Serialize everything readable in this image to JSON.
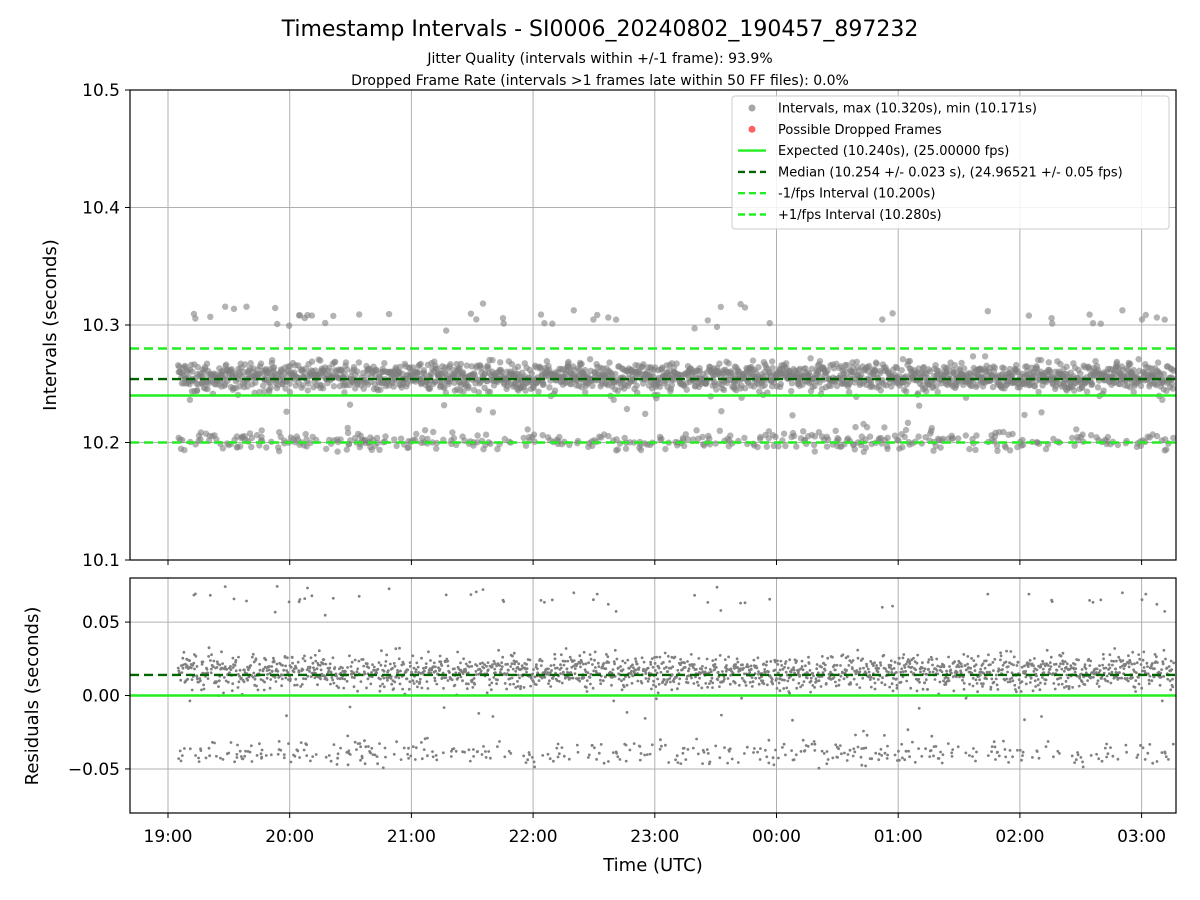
{
  "figure": {
    "title": "Timestamp Intervals - SI0006_20240802_190457_897232",
    "subtitle_jitter": "Jitter Quality (intervals within +/-1 frame): 93.9%",
    "subtitle_dropped": "Dropped Frame Rate (intervals >1 frames late within 50 FF files): 0.0%",
    "xlabel": "Time (UTC)"
  },
  "colors": {
    "points": "#808080",
    "dropped": "#ff6060",
    "expected": "#22ee22",
    "median": "#006400",
    "bounds": "#22ee22",
    "grid": "#b0b0b0"
  },
  "chart_data": [
    {
      "type": "scatter",
      "ylabel": "Intervals (seconds)",
      "ylim": [
        10.1,
        10.5
      ],
      "yticks": [
        "10.1",
        "10.2",
        "10.3",
        "10.4",
        "10.5"
      ],
      "xlim": [
        "18:40",
        "03:16"
      ],
      "xticks": [
        "19:00",
        "20:00",
        "21:00",
        "22:00",
        "23:00",
        "00:00",
        "01:00",
        "02:00",
        "03:00"
      ],
      "grid": true,
      "legend_position": "top-right",
      "legend": [
        {
          "label": "Intervals, max (10.320s), min (10.171s)",
          "style": "dot-gray"
        },
        {
          "label": "Possible Dropped Frames",
          "style": "dot-red"
        },
        {
          "label": "Expected (10.240s), (25.00000 fps)",
          "style": "line-expected"
        },
        {
          "label": "Median (10.254 +/- 0.023 s), (24.96521 +/- 0.05 fps)",
          "style": "dash-median"
        },
        {
          "label": "-1/fps Interval (10.200s)",
          "style": "dash-bound"
        },
        {
          "label": "+1/fps Interval (10.280s)",
          "style": "dash-bound"
        }
      ],
      "reference_lines": {
        "expected": 10.24,
        "median": 10.254,
        "minus_1fps": 10.2,
        "plus_1fps": 10.28
      },
      "series": [
        {
          "name": "Intervals",
          "time_range": [
            "19:05",
            "03:16"
          ],
          "max": 10.32,
          "min": 10.171,
          "bands": [
            {
              "center": 10.256,
              "spread": 0.006
            },
            {
              "center": 10.201,
              "spread": 0.004
            },
            {
              "center": 10.306,
              "spread": 0.005
            }
          ]
        }
      ]
    },
    {
      "type": "scatter",
      "ylabel": "Residuals (seconds)",
      "ylim": [
        -0.08,
        0.08
      ],
      "yticks": [
        "−0.05",
        "0.00",
        "0.05"
      ],
      "xticks": [
        "19:00",
        "20:00",
        "21:00",
        "22:00",
        "23:00",
        "00:00",
        "01:00",
        "02:00",
        "03:00"
      ],
      "grid": true,
      "reference_lines": {
        "zero": 0.0,
        "median": 0.014
      },
      "series": [
        {
          "name": "Residuals",
          "bands": [
            {
              "center": 0.016,
              "spread": 0.006
            },
            {
              "center": -0.039,
              "spread": 0.004
            },
            {
              "center": 0.066,
              "spread": 0.005
            }
          ]
        }
      ]
    }
  ]
}
